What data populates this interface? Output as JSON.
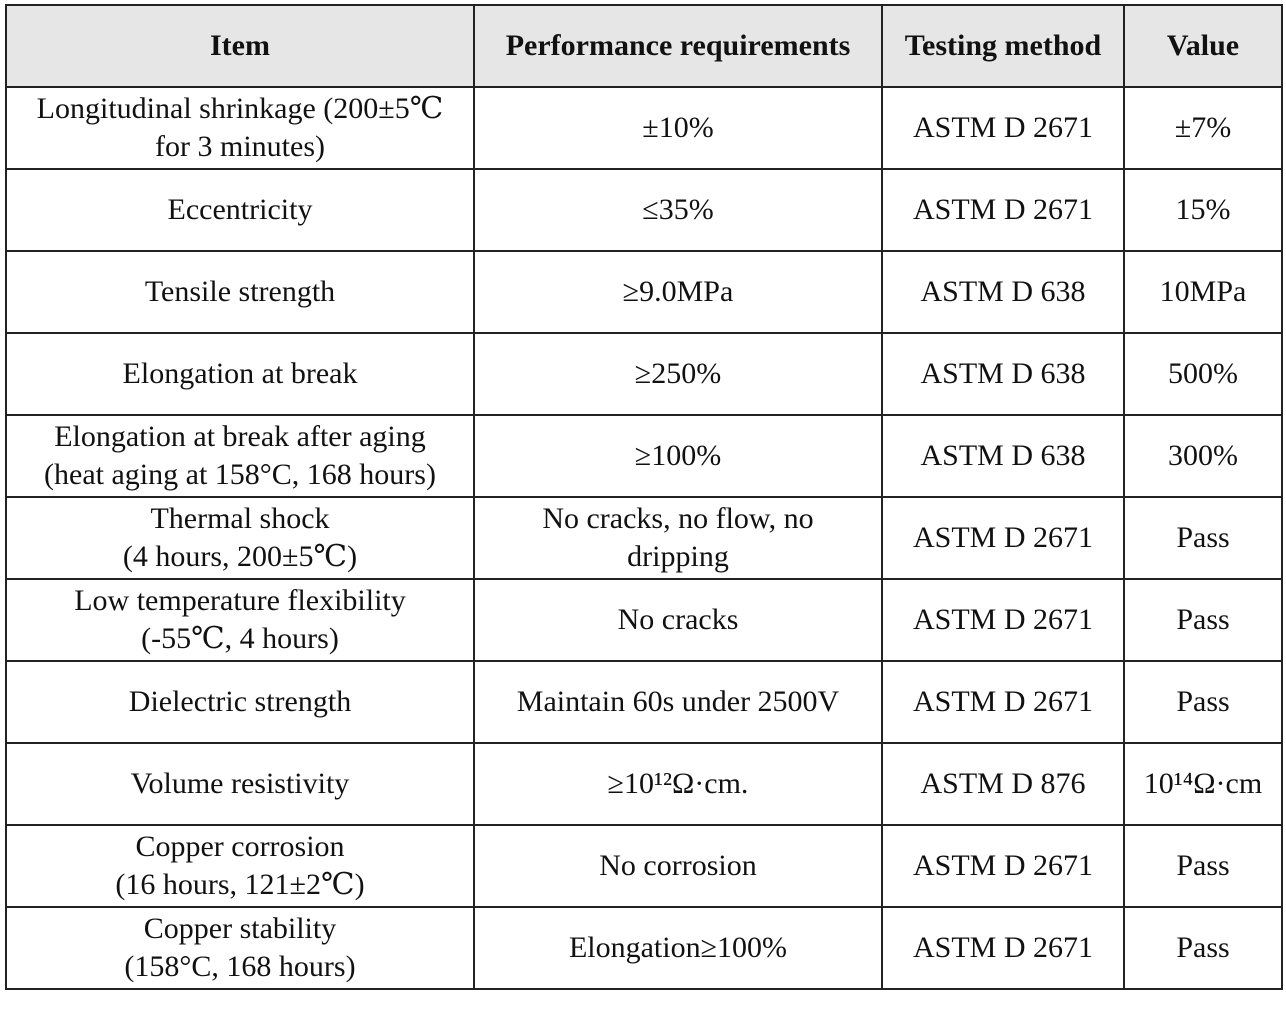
{
  "table": {
    "headers": [
      "Item",
      "Performance requirements",
      "Testing method",
      "Value"
    ],
    "rows": [
      {
        "item": [
          "Longitudinal shrinkage (200±5℃",
          "for 3 minutes)"
        ],
        "requirement": [
          "±10%"
        ],
        "method": "ASTM D 2671",
        "value": "±7%"
      },
      {
        "item": [
          "Eccentricity"
        ],
        "requirement": [
          "≤35%"
        ],
        "method": "ASTM D 2671",
        "value": "15%"
      },
      {
        "item": [
          "Tensile strength"
        ],
        "requirement": [
          "≥9.0MPa"
        ],
        "method": "ASTM D 638",
        "value": "10MPa"
      },
      {
        "item": [
          "Elongation at break"
        ],
        "requirement": [
          "≥250%"
        ],
        "method": "ASTM D 638",
        "value": "500%"
      },
      {
        "item": [
          "Elongation at break after aging",
          "(heat aging at 158°C, 168 hours)"
        ],
        "requirement": [
          "≥100%"
        ],
        "method": "ASTM D 638",
        "value": "300%"
      },
      {
        "item": [
          "Thermal shock",
          "(4 hours, 200±5℃)"
        ],
        "requirement": [
          "No cracks, no flow, no",
          "dripping"
        ],
        "method": "ASTM D 2671",
        "value": "Pass"
      },
      {
        "item": [
          "Low temperature flexibility",
          "(-55℃, 4 hours)"
        ],
        "requirement": [
          "No cracks"
        ],
        "method": "ASTM D 2671",
        "value": "Pass"
      },
      {
        "item": [
          "Dielectric strength"
        ],
        "requirement": [
          "Maintain 60s under 2500V"
        ],
        "method": "ASTM D 2671",
        "value": "Pass"
      },
      {
        "item": [
          "Volume resistivity"
        ],
        "requirement": [
          "≥10¹²Ω·cm."
        ],
        "method": "ASTM D 876",
        "value": "10¹⁴Ω·cm"
      },
      {
        "item": [
          "Copper corrosion",
          "(16 hours, 121±2℃)"
        ],
        "requirement": [
          "No corrosion"
        ],
        "method": "ASTM D 2671",
        "value": "Pass"
      },
      {
        "item": [
          "Copper stability",
          "(158°C, 168 hours)"
        ],
        "requirement": [
          "Elongation≥100%"
        ],
        "method": "ASTM D 2671",
        "value": "Pass"
      }
    ]
  }
}
